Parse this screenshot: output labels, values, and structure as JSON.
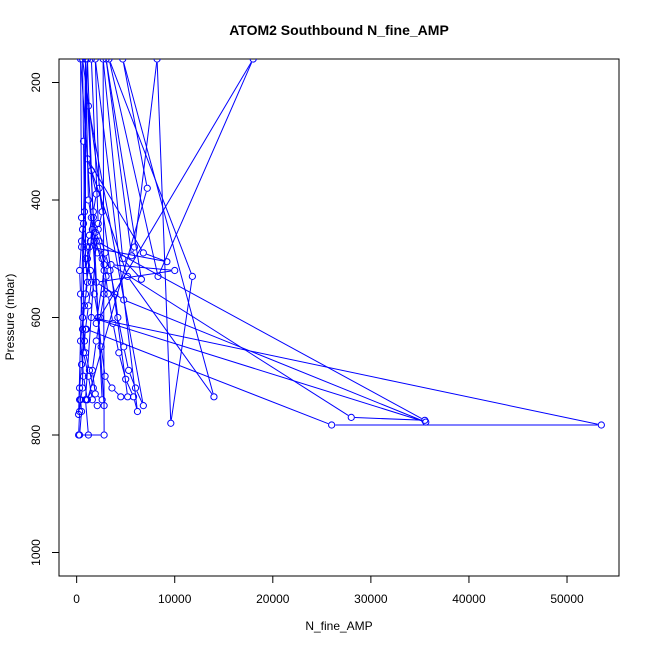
{
  "chart_data": {
    "type": "line",
    "title": "ATOM2 Southbound N_fine_AMP",
    "xlabel": "N_fine_AMP",
    "ylabel": "Pressure (mbar)",
    "xlim": [
      -1800,
      55300
    ],
    "ylim": [
      1040,
      160
    ],
    "y_reversed": true,
    "x_ticks": [
      0,
      10000,
      20000,
      30000,
      40000,
      50000
    ],
    "y_ticks": [
      200,
      400,
      600,
      800,
      1000
    ],
    "grid": false,
    "colors": {
      "series": "#0000ff",
      "axis": "#000000"
    },
    "series": [
      {
        "values": [
          [
            1500,
            160
          ],
          [
            2200,
            440
          ],
          [
            1800,
            470
          ],
          [
            2100,
            490
          ],
          [
            2600,
            500
          ],
          [
            3000,
            530
          ],
          [
            2800,
            560
          ],
          [
            2400,
            600
          ],
          [
            2000,
            640
          ],
          [
            1600,
            690
          ],
          [
            1900,
            730
          ],
          [
            2600,
            740
          ],
          [
            900,
            160
          ],
          [
            1200,
            400
          ],
          [
            1500,
            430
          ],
          [
            1300,
            460
          ],
          [
            1000,
            480
          ],
          [
            1400,
            520
          ],
          [
            1800,
            560
          ],
          [
            2200,
            600
          ],
          [
            2500,
            650
          ],
          [
            2900,
            700
          ],
          [
            3600,
            720
          ],
          [
            4500,
            735
          ],
          [
            5200,
            735
          ],
          [
            600,
            160
          ],
          [
            700,
            300
          ],
          [
            800,
            420
          ],
          [
            600,
            450
          ],
          [
            500,
            480
          ],
          [
            900,
            500
          ],
          [
            1100,
            540
          ],
          [
            800,
            580
          ],
          [
            600,
            620
          ],
          [
            900,
            660
          ],
          [
            1300,
            690
          ],
          [
            1700,
            720
          ],
          [
            1000,
            740
          ],
          [
            300,
            740
          ],
          [
            200,
            765
          ],
          [
            1100,
            160
          ],
          [
            1500,
            350
          ],
          [
            2000,
            390
          ],
          [
            1700,
            420
          ],
          [
            1900,
            455
          ],
          [
            2300,
            470
          ],
          [
            2800,
            510
          ],
          [
            3200,
            560
          ],
          [
            3700,
            610
          ],
          [
            4300,
            660
          ],
          [
            5000,
            705
          ],
          [
            5800,
            735
          ],
          [
            6200,
            760
          ],
          [
            1900,
            160
          ],
          [
            2300,
            380
          ],
          [
            2600,
            420
          ],
          [
            2200,
            450
          ],
          [
            2900,
            490
          ],
          [
            3400,
            520
          ],
          [
            3900,
            560
          ],
          [
            4200,
            600
          ],
          [
            4800,
            650
          ],
          [
            5300,
            690
          ],
          [
            6000,
            720
          ],
          [
            6800,
            750
          ],
          [
            1200,
            240
          ],
          [
            1700,
            430
          ],
          [
            1400,
            470
          ],
          [
            1100,
            500
          ],
          [
            1500,
            540
          ],
          [
            1200,
            580
          ],
          [
            900,
            620
          ],
          [
            700,
            660
          ],
          [
            1200,
            700
          ],
          [
            1600,
            740
          ],
          [
            2100,
            750
          ],
          [
            2800,
            750
          ],
          [
            400,
            160
          ],
          [
            500,
            430
          ],
          [
            700,
            440
          ],
          [
            500,
            470
          ],
          [
            300,
            520
          ],
          [
            400,
            560
          ],
          [
            600,
            600
          ],
          [
            800,
            640
          ],
          [
            500,
            680
          ],
          [
            300,
            720
          ],
          [
            500,
            760
          ],
          [
            300,
            800
          ],
          [
            2800,
            800
          ],
          [
            2700,
            160
          ],
          [
            4700,
            500
          ],
          [
            6600,
            535
          ],
          [
            3000,
            160
          ],
          [
            5600,
            495
          ],
          [
            5900,
            480
          ],
          [
            8200,
            160
          ],
          [
            9600,
            780
          ],
          [
            11800,
            530
          ],
          [
            3300,
            160
          ],
          [
            8300,
            530
          ],
          [
            18000,
            160
          ],
          [
            2000,
            610
          ],
          [
            2800,
            520
          ],
          [
            1600,
            450
          ],
          [
            900,
            560
          ],
          [
            400,
            640
          ],
          [
            700,
            700
          ],
          [
            1100,
            740
          ],
          [
            7200,
            380
          ],
          [
            4700,
            160
          ],
          [
            14000,
            735
          ],
          [
            5200,
            530
          ],
          [
            1100,
            330
          ],
          [
            6800,
            490
          ],
          [
            9200,
            505
          ],
          [
            1300,
            480
          ],
          [
            900,
            520
          ],
          [
            900,
            160
          ],
          [
            600,
            720
          ],
          [
            400,
            740
          ],
          [
            300,
            760
          ],
          [
            200,
            800
          ],
          [
            1200,
            800
          ],
          [
            900,
            740
          ],
          [
            2000,
            470
          ],
          [
            35500,
            775
          ],
          [
            28000,
            770
          ],
          [
            3500,
            510
          ],
          [
            10000,
            520
          ],
          [
            2000,
            540
          ],
          [
            4800,
            570
          ],
          [
            35600,
            778
          ],
          [
            1500,
            600
          ],
          [
            53500,
            783
          ],
          [
            26000,
            783
          ],
          [
            1000,
            620
          ]
        ]
      }
    ]
  }
}
